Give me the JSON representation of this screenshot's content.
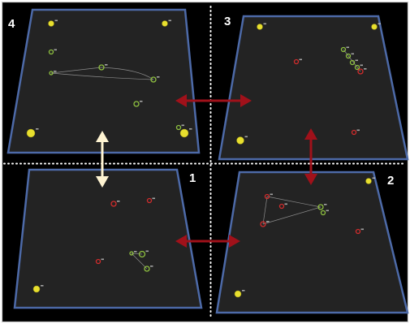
{
  "quadrants": [
    {
      "key": "4",
      "label": "4"
    },
    {
      "key": "3",
      "label": "3"
    },
    {
      "key": "1",
      "label": "1"
    },
    {
      "key": "2",
      "label": "2"
    }
  ],
  "colors": {
    "background": "#000000",
    "outer_frame": "#cfcfcf",
    "board_fill": "#232323",
    "board_border": "#4d6aa8",
    "divider": "#ffffff",
    "arrow_red": "#a0111a",
    "arrow_cream": "#fff4d2",
    "marker_yellow": "#e8df2e",
    "marker_green": "#8fc140",
    "marker_red": "#d22c2c",
    "tiny_text": "#cfcfcf"
  },
  "marker_types": [
    "yellow-ball",
    "green-ring",
    "red-ring"
  ]
}
